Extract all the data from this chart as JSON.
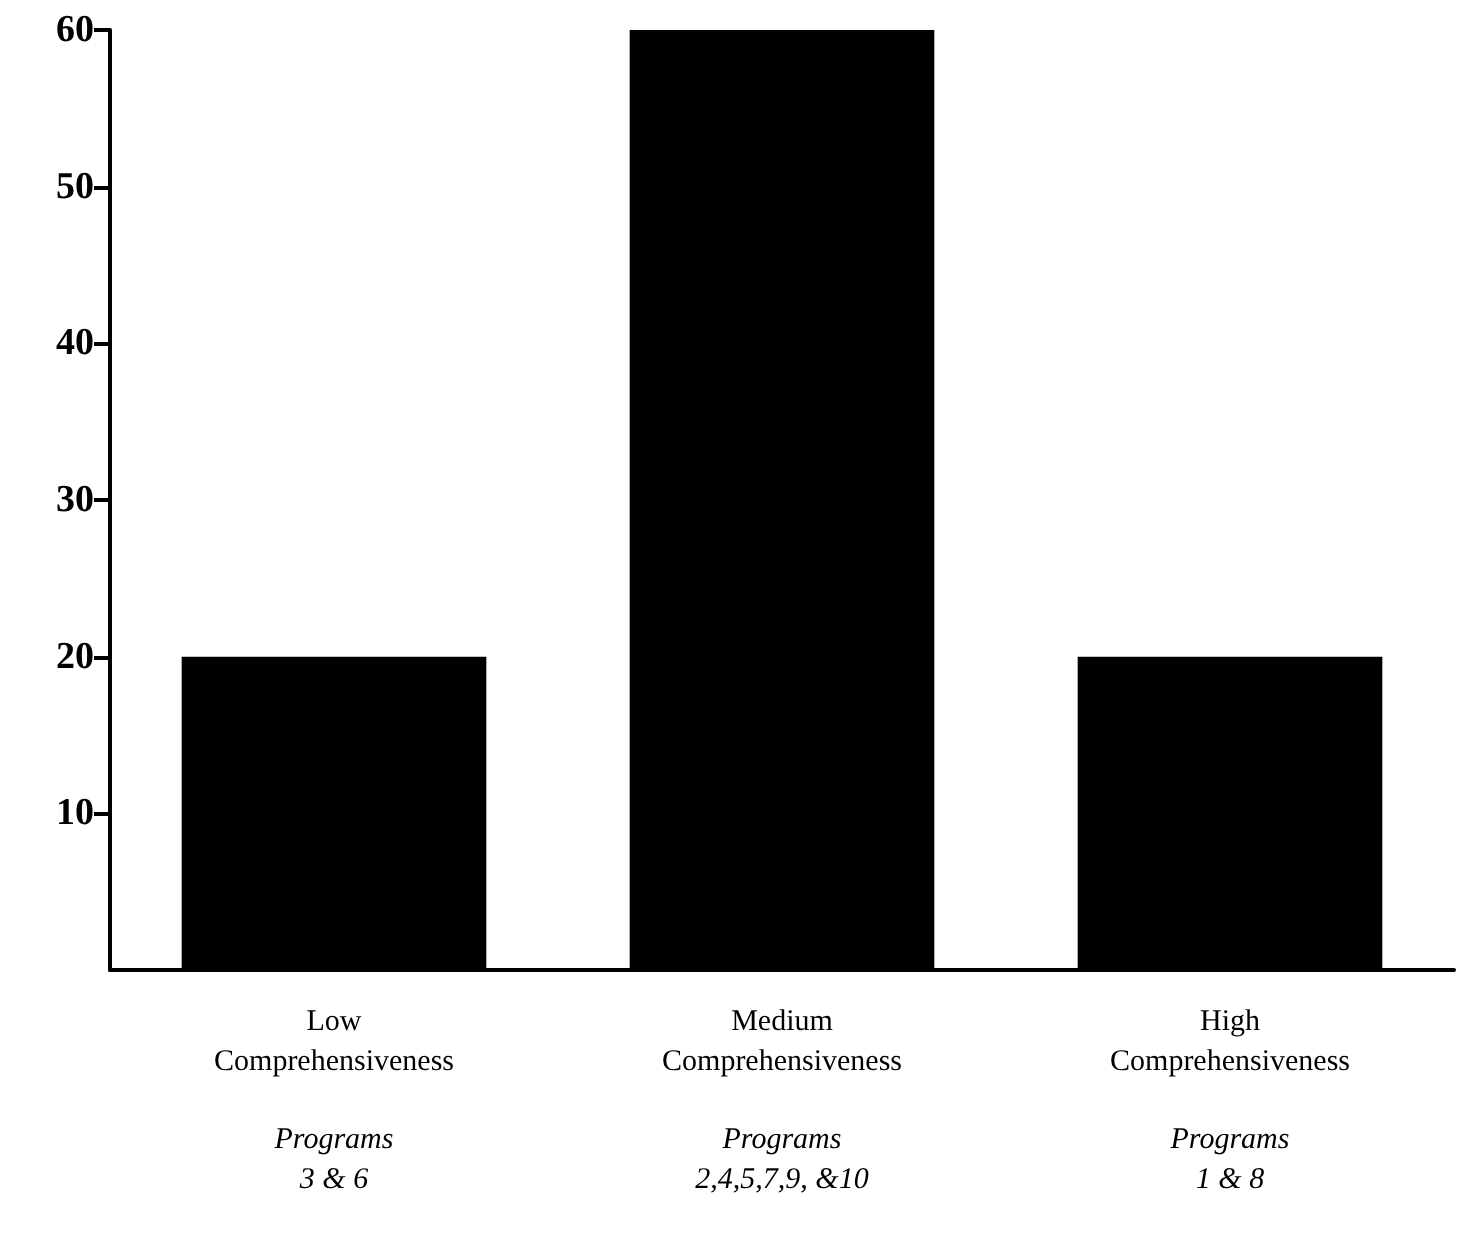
{
  "chart_data": {
    "type": "bar",
    "categories": [
      "Low\nComprehensiveness",
      "Medium\nComprehensiveness",
      "High\nComprehensiveness"
    ],
    "values": [
      20,
      60,
      20
    ],
    "color": "#000000",
    "ylim": [
      0,
      60
    ],
    "yticks": [
      10,
      20,
      30,
      40,
      50,
      60
    ],
    "grid": false,
    "annotations": [
      "Programs\n3 & 6",
      "Programs\n2,4,5,7,9, &10",
      "Programs\n1 & 8"
    ]
  }
}
